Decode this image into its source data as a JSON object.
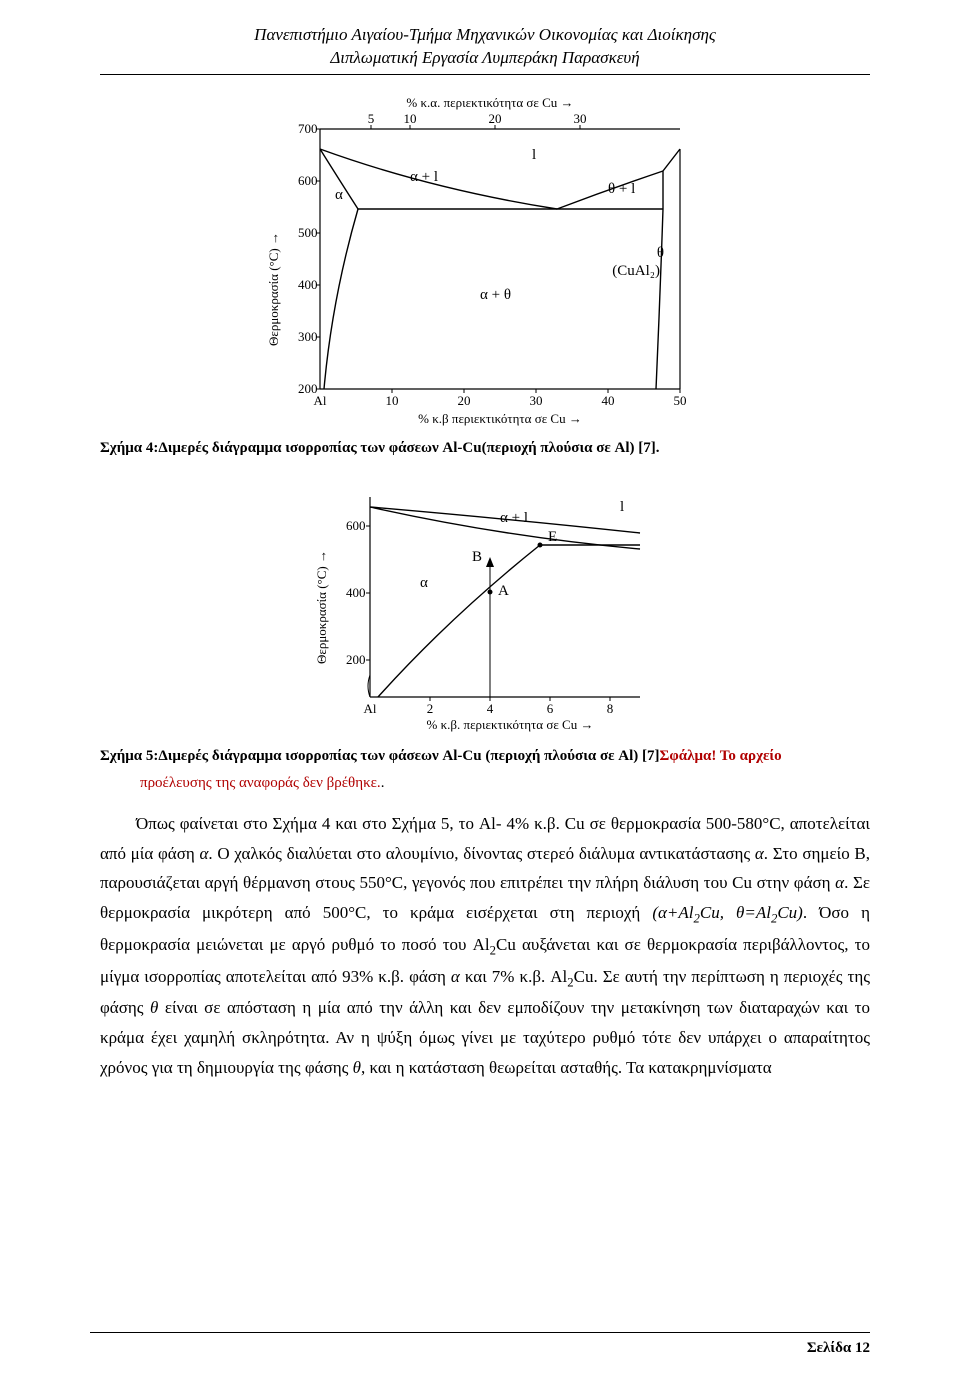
{
  "header": {
    "line1": "Πανεπιστήμιο Αιγαίου-Τμήμα Μηχανικών Οικονομίας και Διοίκησης",
    "line2": "Διπλωματική Εργασία Λυμπεράκη Παρασκευή"
  },
  "figure1": {
    "type": "phase-diagram",
    "x_axis_top": {
      "label": "% κ.α. περιεκτικότητα σε Cu →",
      "ticks": [
        5,
        10,
        20,
        30
      ]
    },
    "x_axis_bottom": {
      "label": "% κ.β περιεκτικότητα σε Cu →",
      "ticks": [
        10,
        20,
        30,
        40,
        50
      ],
      "origin_label": "Al"
    },
    "y_axis": {
      "label": "Θερμοκρασία (°C) →",
      "ticks": [
        200,
        300,
        400,
        500,
        600,
        700
      ]
    },
    "region_labels": [
      "α",
      "α + l",
      "l",
      "θ + l",
      "α + θ",
      "θ",
      "(CuAl₂)"
    ],
    "line_color": "#000000",
    "background": "#ffffff"
  },
  "caption1": "Σχήμα 4:Διμερές διάγραμμα ισορροπίας των φάσεων Al-Cu(περιοχή πλούσια σε Al) [7].",
  "figure2": {
    "type": "phase-diagram",
    "x_axis_bottom": {
      "label": "% κ.β. περιεκτικότητα σε Cu →",
      "ticks": [
        2,
        4,
        6,
        8
      ],
      "origin_label": "Al"
    },
    "y_axis": {
      "label": "Θερμοκρασία (°C) →",
      "ticks": [
        200,
        400,
        600
      ]
    },
    "region_labels": [
      "α",
      "α + l",
      "l"
    ],
    "point_labels": [
      "A",
      "B",
      "E"
    ],
    "line_color": "#000000",
    "background": "#ffffff"
  },
  "caption2_prefix": "Σχήμα 5:Διμερές διάγραμμα ισορροπίας των φάσεων Al-Cu (περιοχή πλούσια σε Al) [7]",
  "ref_error": "Σφάλμα! Το αρχείο",
  "ref_error_sub": "προέλευσης της αναφοράς δεν βρέθηκε.",
  "ref_error_tail": ".",
  "body_html": "Όπως φαίνεται στο Σχήμα 4 και στο Σχήμα 5, το Al- 4% κ.β. Cu σε θερμοκρασία 500-580°C, αποτελείται από μία φάση <i>α</i>. Ο χαλκός διαλύεται στο αλουμίνιο, δίνοντας στερεό διάλυμα αντικατάστασης <i>α</i>. Στο σημείο B, παρουσιάζεται αργή θέρμανση στους 550°C, γεγονός που επιτρέπει την πλήρη διάλυση του Cu στην φάση <i>α</i>. Σε θερμοκρασία μικρότερη από 500°C, το κράμα εισέρχεται στη περιοχή <i>(α+Al<span class=\"sub\">2</span>Cu, θ=Al<span class=\"sub\">2</span>Cu)</i>. Όσο η θερμοκρασία μειώνεται με αργό ρυθμό το ποσό του Al<span class=\"sub\">2</span>Cu αυξάνεται και σε θερμοκρασία περιβάλλοντος, το μίγμα ισορροπίας αποτελείται από 93% κ.β. φάση <i>α</i> και 7% κ.β. Al<span class=\"sub\">2</span>Cu. Σε αυτή την περίπτωση η περιοχές της φάσης <i>θ</i> είναι σε απόσταση η μία από την άλλη και δεν εμποδίζουν την μετακίνηση των διαταραχών και το κράμα έχει χαμηλή σκληρότητα. Αν η ψύξη όμως γίνει με ταχύτερο ρυθμό τότε δεν υπάρχει ο απαραίτητος χρόνος για τη δημιουργία της φάσης <i>θ</i>, και η κατάσταση θεωρείται ασταθής. Τα κατακρημνίσματα",
  "footer": "Σελίδα 12"
}
